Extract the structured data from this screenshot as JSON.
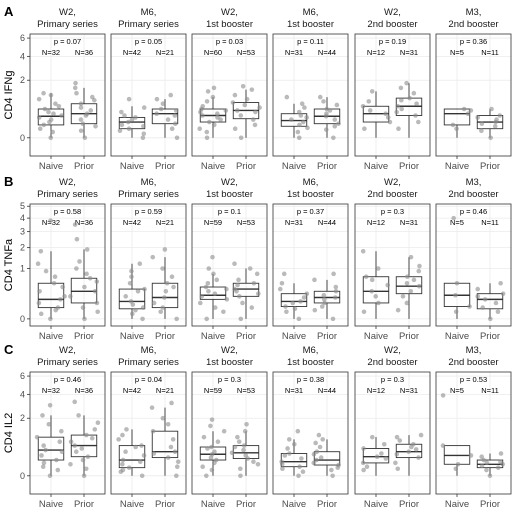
{
  "figure": {
    "rows": [
      {
        "letter": "A",
        "ylabel": "CD4 IFNg"
      },
      {
        "letter": "B",
        "ylabel": "CD4 TNFa"
      },
      {
        "letter": "C",
        "ylabel": "CD4 IL2"
      }
    ],
    "groups": [
      "Naive",
      "Prior"
    ]
  },
  "chart_data": [
    {
      "type": "box",
      "panel": "A",
      "ylabel": "CD4 IFNg",
      "yscale": "sqrt",
      "ylim": [
        -0.2,
        6.5
      ],
      "yticks": [
        0,
        2,
        4,
        6
      ],
      "facets": [
        {
          "line1": "W2,",
          "line2": "Primary series",
          "p": "p = 0.07",
          "n_naive": "N=32",
          "n_prior": "N=36",
          "naive": {
            "q1": 0.1,
            "med": 0.28,
            "q3": 0.5,
            "wlo": 0,
            "whi": 1.2,
            "points": [
              0,
              0.02,
              0.05,
              0.1,
              0.15,
              0.2,
              0.25,
              0.3,
              0.35,
              0.4,
              0.5,
              0.6,
              0.7,
              0.9,
              1.1,
              1.2
            ]
          },
          "prior": {
            "q1": 0.12,
            "med": 0.35,
            "q3": 0.7,
            "wlo": 0,
            "whi": 1.5,
            "points": [
              0,
              0.03,
              0.08,
              0.12,
              0.2,
              0.3,
              0.35,
              0.45,
              0.55,
              0.7,
              0.85,
              1.0,
              1.2,
              1.5,
              1.8
            ]
          }
        },
        {
          "line1": "M6,",
          "line2": "Primary series",
          "p": "p = 0.05",
          "n_naive": "N=42",
          "n_prior": "N=21",
          "naive": {
            "q1": 0.05,
            "med": 0.15,
            "q3": 0.25,
            "wlo": 0,
            "whi": 0.6,
            "points": [
              0,
              0.01,
              0.03,
              0.05,
              0.08,
              0.1,
              0.15,
              0.2,
              0.25,
              0.3,
              0.4,
              0.55,
              0.9
            ]
          },
          "prior": {
            "q1": 0.12,
            "med": 0.35,
            "q3": 0.5,
            "wlo": 0,
            "whi": 0.9,
            "points": [
              0,
              0.05,
              0.12,
              0.2,
              0.3,
              0.35,
              0.45,
              0.5,
              0.7,
              0.9,
              1.1
            ]
          }
        },
        {
          "line1": "W2,",
          "line2": "1st booster",
          "p": "p = 0.03",
          "n_naive": "N=60",
          "n_prior": "N=53",
          "naive": {
            "q1": 0.15,
            "med": 0.3,
            "q3": 0.5,
            "wlo": 0,
            "whi": 1.0,
            "points": [
              0,
              0.02,
              0.05,
              0.1,
              0.15,
              0.2,
              0.25,
              0.3,
              0.35,
              0.4,
              0.45,
              0.5,
              0.6,
              0.8,
              1.0,
              1.3,
              1.5
            ]
          },
          "prior": {
            "q1": 0.22,
            "med": 0.45,
            "q3": 0.75,
            "wlo": 0,
            "whi": 1.4,
            "points": [
              0,
              0.05,
              0.1,
              0.2,
              0.3,
              0.4,
              0.45,
              0.55,
              0.65,
              0.75,
              0.9,
              1.1,
              1.4,
              1.6
            ]
          }
        },
        {
          "line1": "M6,",
          "line2": "1st booster",
          "p": "p = 0.11",
          "n_naive": "N=31",
          "n_prior": "N=44",
          "naive": {
            "q1": 0.08,
            "med": 0.18,
            "q3": 0.35,
            "wlo": 0,
            "whi": 0.7,
            "points": [
              0,
              0.02,
              0.06,
              0.1,
              0.15,
              0.2,
              0.25,
              0.3,
              0.4,
              0.55,
              0.7,
              1.0
            ]
          },
          "prior": {
            "q1": 0.12,
            "med": 0.28,
            "q3": 0.5,
            "wlo": 0,
            "whi": 1.0,
            "points": [
              0,
              0.04,
              0.08,
              0.12,
              0.2,
              0.28,
              0.35,
              0.45,
              0.5,
              0.65,
              0.8,
              1.0
            ]
          }
        },
        {
          "line1": "W2,",
          "line2": "2nd booster",
          "p": "p = 0.19",
          "n_naive": "N=12",
          "n_prior": "N=31",
          "naive": {
            "q1": 0.15,
            "med": 0.35,
            "q3": 0.6,
            "wlo": 0,
            "whi": 1.3,
            "points": [
              0.05,
              0.15,
              0.25,
              0.35,
              0.45,
              0.6,
              0.8,
              1.3
            ]
          },
          "prior": {
            "q1": 0.3,
            "med": 0.6,
            "q3": 0.95,
            "wlo": 0,
            "whi": 1.8,
            "points": [
              0.05,
              0.15,
              0.3,
              0.4,
              0.5,
              0.6,
              0.7,
              0.85,
              0.95,
              1.2,
              1.5,
              1.8
            ]
          }
        },
        {
          "line1": "M3,",
          "line2": "2nd booster",
          "p": "p = 0.36",
          "n_naive": "N=5",
          "n_prior": "N=11",
          "naive": {
            "q1": 0.1,
            "med": 0.35,
            "q3": 0.5,
            "wlo": 0,
            "whi": 0.5,
            "points": [
              0.05,
              0.1,
              0.35,
              0.45,
              0.5
            ]
          },
          "prior": {
            "q1": 0.05,
            "med": 0.15,
            "q3": 0.3,
            "wlo": 0,
            "whi": 0.5,
            "points": [
              0,
              0.03,
              0.08,
              0.12,
              0.15,
              0.2,
              0.25,
              0.3,
              0.5
            ]
          }
        }
      ]
    },
    {
      "type": "box",
      "panel": "B",
      "ylabel": "CD4 TNFa",
      "yscale": "sqrt",
      "ylim": [
        -0.02,
        5.2
      ],
      "yticks": [
        0,
        1,
        2,
        3,
        4,
        5
      ],
      "facets": [
        {
          "line1": "W2,",
          "line2": "Primary series",
          "p": "p = 0.58",
          "n_naive": "N=32",
          "n_prior": "N=36",
          "naive": {
            "q1": 0.05,
            "med": 0.15,
            "q3": 0.5,
            "wlo": 0,
            "whi": 1.8,
            "points": [
              0,
              0.01,
              0.03,
              0.05,
              0.1,
              0.15,
              0.2,
              0.3,
              0.4,
              0.5,
              0.7,
              0.9,
              1.2,
              1.8,
              3.8
            ]
          },
          "prior": {
            "q1": 0.1,
            "med": 0.3,
            "q3": 0.65,
            "wlo": 0,
            "whi": 1.9,
            "points": [
              0,
              0.02,
              0.05,
              0.1,
              0.2,
              0.3,
              0.4,
              0.55,
              0.65,
              0.8,
              1.0,
              1.3,
              1.9,
              2.5,
              3.5
            ]
          }
        },
        {
          "line1": "M6,",
          "line2": "Primary series",
          "p": "p = 0.59",
          "n_naive": "N=42",
          "n_prior": "N=21",
          "naive": {
            "q1": 0.04,
            "med": 0.12,
            "q3": 0.35,
            "wlo": 0,
            "whi": 1.2,
            "points": [
              0,
              0.01,
              0.03,
              0.05,
              0.08,
              0.12,
              0.2,
              0.3,
              0.35,
              0.5,
              0.7,
              0.9,
              1.2
            ]
          },
          "prior": {
            "q1": 0.05,
            "med": 0.18,
            "q3": 0.5,
            "wlo": 0,
            "whi": 1.5,
            "points": [
              0,
              0.02,
              0.05,
              0.1,
              0.18,
              0.3,
              0.4,
              0.5,
              0.7,
              1.0,
              1.5,
              1.9
            ]
          }
        },
        {
          "line1": "W2,",
          "line2": "1st booster",
          "p": "p = 0.1",
          "n_naive": "N=59",
          "n_prior": "N=53",
          "naive": {
            "q1": 0.15,
            "med": 0.22,
            "q3": 0.4,
            "wlo": 0,
            "whi": 0.8,
            "points": [
              0,
              0.02,
              0.05,
              0.1,
              0.15,
              0.2,
              0.25,
              0.3,
              0.35,
              0.4,
              0.5,
              0.6,
              0.8,
              1.0,
              1.5
            ]
          },
          "prior": {
            "q1": 0.2,
            "med": 0.35,
            "q3": 0.5,
            "wlo": 0,
            "whi": 1.0,
            "points": [
              0,
              0.05,
              0.1,
              0.2,
              0.25,
              0.3,
              0.35,
              0.45,
              0.5,
              0.6,
              0.8,
              1.0,
              1.2
            ]
          }
        },
        {
          "line1": "M6,",
          "line2": "1st booster",
          "p": "p = 0.37",
          "n_naive": "N=31",
          "n_prior": "N=44",
          "naive": {
            "q1": 0.06,
            "med": 0.12,
            "q3": 0.25,
            "wlo": 0,
            "whi": 0.5,
            "points": [
              0,
              0.02,
              0.04,
              0.06,
              0.1,
              0.12,
              0.18,
              0.25,
              0.35,
              0.5,
              0.8
            ]
          },
          "prior": {
            "q1": 0.1,
            "med": 0.18,
            "q3": 0.3,
            "wlo": 0,
            "whi": 0.6,
            "points": [
              0,
              0.03,
              0.06,
              0.1,
              0.15,
              0.18,
              0.22,
              0.3,
              0.4,
              0.6,
              0.8
            ]
          }
        },
        {
          "line1": "W2,",
          "line2": "2nd booster",
          "p": "p = 0.3",
          "n_naive": "N=12",
          "n_prior": "N=31",
          "naive": {
            "q1": 0.1,
            "med": 0.3,
            "q3": 0.7,
            "wlo": 0,
            "whi": 1.8,
            "points": [
              0.02,
              0.1,
              0.2,
              0.3,
              0.45,
              0.6,
              0.7,
              1.0,
              1.8
            ]
          },
          "prior": {
            "q1": 0.25,
            "med": 0.42,
            "q3": 0.7,
            "wlo": 0,
            "whi": 1.5,
            "points": [
              0.03,
              0.1,
              0.2,
              0.3,
              0.42,
              0.5,
              0.6,
              0.7,
              0.9,
              1.1,
              1.5
            ]
          }
        },
        {
          "line1": "M3,",
          "line2": "2nd booster",
          "p": "p = 0.46",
          "n_naive": "N=5",
          "n_prior": "N=11",
          "naive": {
            "q1": 0.06,
            "med": 0.22,
            "q3": 0.5,
            "wlo": 0,
            "whi": 0.5,
            "points": [
              0.02,
              0.06,
              0.22,
              0.5,
              4.0
            ]
          },
          "prior": {
            "q1": 0.04,
            "med": 0.15,
            "q3": 0.25,
            "wlo": 0,
            "whi": 0.5,
            "points": [
              0,
              0.02,
              0.05,
              0.1,
              0.15,
              0.2,
              0.25,
              0.35,
              0.5
            ]
          }
        }
      ]
    },
    {
      "type": "box",
      "panel": "C",
      "ylabel": "CD4 IL2",
      "yscale": "sqrt",
      "ylim": [
        -0.2,
        6.5
      ],
      "yticks": [
        0,
        2,
        4,
        6
      ],
      "facets": [
        {
          "line1": "W2,",
          "line2": "Primary series",
          "p": "p = 0.46",
          "n_naive": "N=32",
          "n_prior": "N=36",
          "naive": {
            "q1": 0.15,
            "med": 0.4,
            "q3": 0.9,
            "wlo": 0,
            "whi": 2.2,
            "points": [
              0,
              0.02,
              0.05,
              0.1,
              0.15,
              0.25,
              0.35,
              0.4,
              0.55,
              0.7,
              0.9,
              1.2,
              1.6,
              2.2,
              3.0
            ]
          },
          "prior": {
            "q1": 0.22,
            "med": 0.55,
            "q3": 1.0,
            "wlo": 0,
            "whi": 2.2,
            "points": [
              0,
              0.03,
              0.08,
              0.15,
              0.22,
              0.35,
              0.45,
              0.55,
              0.7,
              0.85,
              1.0,
              1.3,
              1.7,
              2.2,
              3.3
            ]
          }
        },
        {
          "line1": "M6,",
          "line2": "Primary series",
          "p": "p = 0.04",
          "n_naive": "N=42",
          "n_prior": "N=21",
          "naive": {
            "q1": 0.04,
            "med": 0.15,
            "q3": 0.55,
            "wlo": 0,
            "whi": 1.3,
            "points": [
              0,
              0.01,
              0.02,
              0.04,
              0.08,
              0.12,
              0.15,
              0.25,
              0.35,
              0.5,
              0.55,
              0.8,
              1.0,
              1.3
            ]
          },
          "prior": {
            "q1": 0.2,
            "med": 0.35,
            "q3": 1.2,
            "wlo": 0,
            "whi": 2.8,
            "points": [
              0,
              0.05,
              0.12,
              0.2,
              0.3,
              0.35,
              0.5,
              0.8,
              1.2,
              1.6,
              2.0,
              2.8,
              3.2
            ]
          }
        },
        {
          "line1": "W2,",
          "line2": "1st booster",
          "p": "p = 0.3",
          "n_naive": "N=59",
          "n_prior": "N=53",
          "naive": {
            "q1": 0.15,
            "med": 0.28,
            "q3": 0.5,
            "wlo": 0,
            "whi": 1.2,
            "points": [
              0,
              0.02,
              0.05,
              0.1,
              0.15,
              0.2,
              0.28,
              0.35,
              0.45,
              0.5,
              0.7,
              0.9,
              1.2,
              1.5,
              1.9
            ]
          },
          "prior": {
            "q1": 0.18,
            "med": 0.32,
            "q3": 0.55,
            "wlo": 0,
            "whi": 1.2,
            "points": [
              0,
              0.03,
              0.08,
              0.12,
              0.18,
              0.25,
              0.32,
              0.4,
              0.5,
              0.55,
              0.7,
              0.9,
              1.2,
              1.6
            ]
          }
        },
        {
          "line1": "M6,",
          "line2": "1st booster",
          "p": "p = 0.38",
          "n_naive": "N=31",
          "n_prior": "N=44",
          "naive": {
            "q1": 0.05,
            "med": 0.12,
            "q3": 0.3,
            "wlo": 0,
            "whi": 0.8,
            "points": [
              0,
              0.01,
              0.03,
              0.05,
              0.08,
              0.12,
              0.18,
              0.25,
              0.3,
              0.45,
              0.6,
              0.8,
              1.2
            ]
          },
          "prior": {
            "q1": 0.07,
            "med": 0.15,
            "q3": 0.35,
            "wlo": 0,
            "whi": 0.8,
            "points": [
              0,
              0.02,
              0.04,
              0.07,
              0.1,
              0.15,
              0.2,
              0.28,
              0.35,
              0.5,
              0.65,
              0.8,
              1.0
            ]
          }
        },
        {
          "line1": "W2,",
          "line2": "2nd booster",
          "p": "p = 0.3",
          "n_naive": "N=12",
          "n_prior": "N=31",
          "naive": {
            "q1": 0.1,
            "med": 0.22,
            "q3": 0.45,
            "wlo": 0,
            "whi": 0.9,
            "points": [
              0.02,
              0.05,
              0.1,
              0.18,
              0.22,
              0.3,
              0.45,
              0.6,
              0.9
            ]
          },
          "prior": {
            "q1": 0.2,
            "med": 0.35,
            "q3": 0.6,
            "wlo": 0,
            "whi": 1.0,
            "points": [
              0.03,
              0.1,
              0.2,
              0.28,
              0.35,
              0.42,
              0.5,
              0.6,
              0.75,
              0.9,
              1.0
            ]
          }
        },
        {
          "line1": "M3,",
          "line2": "2nd booster",
          "p": "p = 0.53",
          "n_naive": "N=5",
          "n_prior": "N=11",
          "naive": {
            "q1": 0.08,
            "med": 0.25,
            "q3": 0.55,
            "wlo": 0,
            "whi": 0.55,
            "points": [
              0.03,
              0.08,
              0.25,
              0.55,
              3.9
            ]
          },
          "prior": {
            "q1": 0.04,
            "med": 0.08,
            "q3": 0.15,
            "wlo": 0,
            "whi": 0.3,
            "points": [
              0,
              0.02,
              0.04,
              0.06,
              0.08,
              0.1,
              0.12,
              0.15,
              0.22,
              0.3
            ]
          }
        }
      ]
    }
  ]
}
